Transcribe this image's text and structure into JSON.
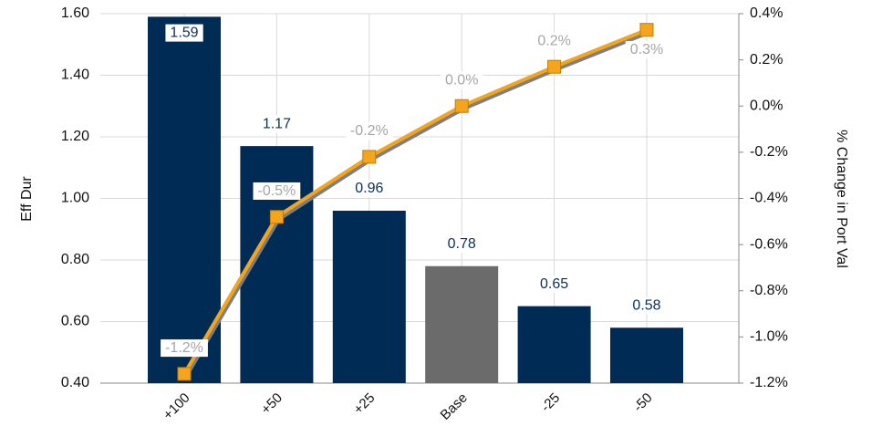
{
  "chart_data": {
    "type": "bar",
    "categories": [
      "+100",
      "+50",
      "+25",
      "Base",
      "-25",
      "-50"
    ],
    "ylabel": "Eff Dur",
    "y2label": "% Change in Port Val",
    "ylim": [
      0.4,
      1.6
    ],
    "yticks": [
      {
        "value": 0.4,
        "label": "0.40"
      },
      {
        "value": 0.6,
        "label": "0.60"
      },
      {
        "value": 0.8,
        "label": "0.80"
      },
      {
        "value": 1.0,
        "label": "1.00"
      },
      {
        "value": 1.2,
        "label": "1.20"
      },
      {
        "value": 1.4,
        "label": "1.40"
      },
      {
        "value": 1.6,
        "label": "1.60"
      }
    ],
    "y2lim": [
      -1.2,
      0.4
    ],
    "y2ticks": [
      {
        "value": -1.2,
        "label": "-1.2%"
      },
      {
        "value": -1.0,
        "label": "-1.0%"
      },
      {
        "value": -0.8,
        "label": "-0.8%"
      },
      {
        "value": -0.6,
        "label": "-0.6%"
      },
      {
        "value": -0.4,
        "label": "-0.4%"
      },
      {
        "value": -0.2,
        "label": "-0.2%"
      },
      {
        "value": 0.0,
        "label": "0.0%"
      },
      {
        "value": 0.2,
        "label": "0.2%"
      },
      {
        "value": 0.4,
        "label": "0.4%"
      }
    ],
    "grid": true,
    "series": [
      {
        "type": "bar",
        "colors": [
          "#002b54",
          "#002b54",
          "#002b54",
          "#6b6b6b",
          "#002b54",
          "#002b54"
        ],
        "label_color": "#0d2f55",
        "values": [
          1.59,
          1.17,
          0.96,
          0.78,
          0.65,
          0.58
        ]
      },
      {
        "type": "line",
        "axis": "y2",
        "color": "#f5a51c",
        "label_color": "#a6a6a6",
        "values": [
          -1.16,
          -0.48,
          -0.22,
          0.0,
          0.17,
          0.33
        ],
        "value_labels": [
          "-1.2%",
          "-0.5%",
          "-0.2%",
          "0.0%",
          "0.2%",
          "0.3%"
        ]
      }
    ]
  }
}
